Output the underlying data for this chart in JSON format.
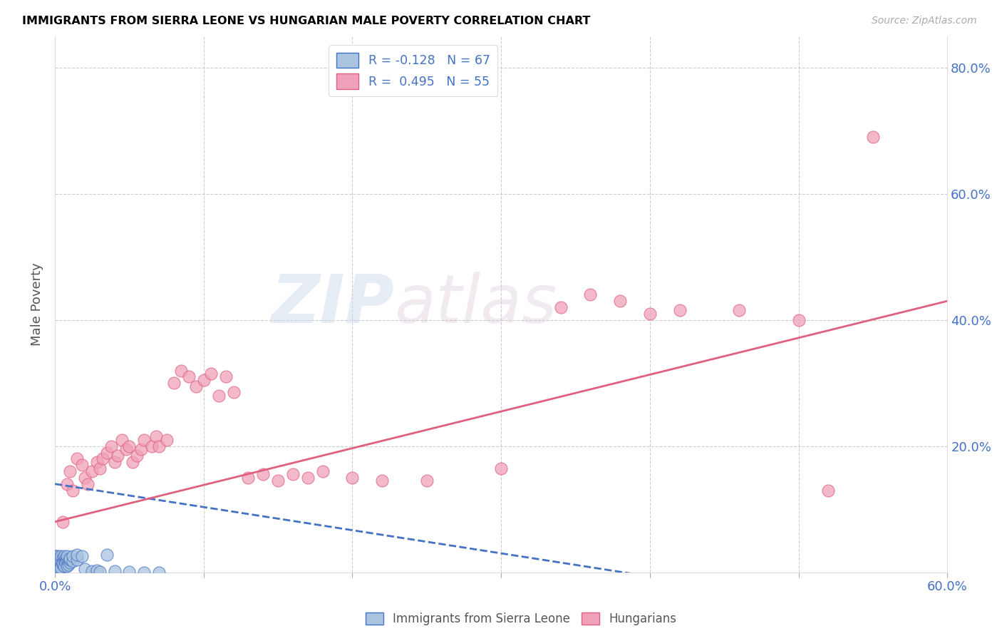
{
  "title": "IMMIGRANTS FROM SIERRA LEONE VS HUNGARIAN MALE POVERTY CORRELATION CHART",
  "source": "Source: ZipAtlas.com",
  "ylabel": "Male Poverty",
  "xlim": [
    0,
    0.6
  ],
  "ylim": [
    0,
    0.85
  ],
  "color_blue": "#aac4e0",
  "color_pink": "#f0a0b8",
  "color_blue_line": "#4472c4",
  "color_pink_line": "#e06080",
  "watermark_zip": "ZIP",
  "watermark_atlas": "atlas",
  "sierra_leone_R": -0.128,
  "sierra_leone_N": 67,
  "hungarian_R": 0.495,
  "hungarian_N": 55,
  "sierra_leone_points": [
    [
      0.0,
      0.005
    ],
    [
      0.0,
      0.01
    ],
    [
      0.0,
      0.015
    ],
    [
      0.0,
      0.018
    ],
    [
      0.0,
      0.008
    ],
    [
      0.0,
      0.02
    ],
    [
      0.0,
      0.003
    ],
    [
      0.0,
      0.025
    ],
    [
      0.001,
      0.012
    ],
    [
      0.001,
      0.016
    ],
    [
      0.001,
      0.01
    ],
    [
      0.001,
      0.022
    ],
    [
      0.001,
      0.008
    ],
    [
      0.001,
      0.005
    ],
    [
      0.001,
      0.018
    ],
    [
      0.001,
      0.025
    ],
    [
      0.002,
      0.015
    ],
    [
      0.002,
      0.02
    ],
    [
      0.002,
      0.01
    ],
    [
      0.002,
      0.022
    ],
    [
      0.002,
      0.005
    ],
    [
      0.002,
      0.018
    ],
    [
      0.002,
      0.012
    ],
    [
      0.002,
      0.025
    ],
    [
      0.003,
      0.018
    ],
    [
      0.003,
      0.012
    ],
    [
      0.003,
      0.022
    ],
    [
      0.003,
      0.008
    ],
    [
      0.003,
      0.015
    ],
    [
      0.003,
      0.02
    ],
    [
      0.004,
      0.01
    ],
    [
      0.004,
      0.015
    ],
    [
      0.004,
      0.02
    ],
    [
      0.004,
      0.025
    ],
    [
      0.004,
      0.008
    ],
    [
      0.005,
      0.018
    ],
    [
      0.005,
      0.022
    ],
    [
      0.005,
      0.012
    ],
    [
      0.005,
      0.015
    ],
    [
      0.006,
      0.02
    ],
    [
      0.006,
      0.01
    ],
    [
      0.006,
      0.025
    ],
    [
      0.007,
      0.022
    ],
    [
      0.007,
      0.018
    ],
    [
      0.007,
      0.015
    ],
    [
      0.008,
      0.01
    ],
    [
      0.008,
      0.02
    ],
    [
      0.008,
      0.025
    ],
    [
      0.009,
      0.018
    ],
    [
      0.009,
      0.012
    ],
    [
      0.01,
      0.015
    ],
    [
      0.01,
      0.02
    ],
    [
      0.01,
      0.022
    ],
    [
      0.012,
      0.018
    ],
    [
      0.012,
      0.025
    ],
    [
      0.015,
      0.02
    ],
    [
      0.015,
      0.028
    ],
    [
      0.018,
      0.025
    ],
    [
      0.02,
      0.005
    ],
    [
      0.025,
      0.002
    ],
    [
      0.028,
      0.003
    ],
    [
      0.03,
      0.001
    ],
    [
      0.035,
      0.028
    ],
    [
      0.04,
      0.002
    ],
    [
      0.05,
      0.001
    ],
    [
      0.06,
      0.0
    ],
    [
      0.07,
      0.0
    ]
  ],
  "hungarian_points": [
    [
      0.005,
      0.08
    ],
    [
      0.008,
      0.14
    ],
    [
      0.01,
      0.16
    ],
    [
      0.012,
      0.13
    ],
    [
      0.015,
      0.18
    ],
    [
      0.018,
      0.17
    ],
    [
      0.02,
      0.15
    ],
    [
      0.022,
      0.14
    ],
    [
      0.025,
      0.16
    ],
    [
      0.028,
      0.175
    ],
    [
      0.03,
      0.165
    ],
    [
      0.032,
      0.18
    ],
    [
      0.035,
      0.19
    ],
    [
      0.038,
      0.2
    ],
    [
      0.04,
      0.175
    ],
    [
      0.042,
      0.185
    ],
    [
      0.045,
      0.21
    ],
    [
      0.048,
      0.195
    ],
    [
      0.05,
      0.2
    ],
    [
      0.052,
      0.175
    ],
    [
      0.055,
      0.185
    ],
    [
      0.058,
      0.195
    ],
    [
      0.06,
      0.21
    ],
    [
      0.065,
      0.2
    ],
    [
      0.068,
      0.215
    ],
    [
      0.07,
      0.2
    ],
    [
      0.075,
      0.21
    ],
    [
      0.08,
      0.3
    ],
    [
      0.085,
      0.32
    ],
    [
      0.09,
      0.31
    ],
    [
      0.095,
      0.295
    ],
    [
      0.1,
      0.305
    ],
    [
      0.105,
      0.315
    ],
    [
      0.11,
      0.28
    ],
    [
      0.115,
      0.31
    ],
    [
      0.12,
      0.285
    ],
    [
      0.13,
      0.15
    ],
    [
      0.14,
      0.155
    ],
    [
      0.15,
      0.145
    ],
    [
      0.16,
      0.155
    ],
    [
      0.17,
      0.15
    ],
    [
      0.18,
      0.16
    ],
    [
      0.2,
      0.15
    ],
    [
      0.22,
      0.145
    ],
    [
      0.25,
      0.145
    ],
    [
      0.3,
      0.165
    ],
    [
      0.34,
      0.42
    ],
    [
      0.36,
      0.44
    ],
    [
      0.38,
      0.43
    ],
    [
      0.4,
      0.41
    ],
    [
      0.42,
      0.415
    ],
    [
      0.46,
      0.415
    ],
    [
      0.5,
      0.4
    ],
    [
      0.52,
      0.13
    ],
    [
      0.55,
      0.69
    ]
  ]
}
